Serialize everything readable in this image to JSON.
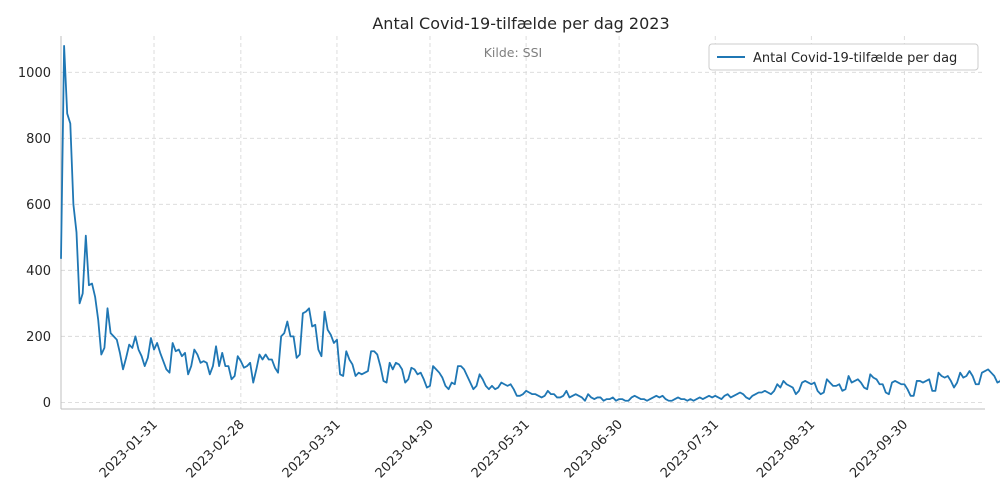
{
  "chart_data": {
    "type": "line",
    "title": "Antal Covid-19-tilfælde per dag 2023",
    "subtitle": "Kilde: SSI",
    "xlabel": "",
    "ylabel": "",
    "x_range": [
      "2023-01-01",
      "2023-10-26"
    ],
    "ylim": [
      -20,
      1110
    ],
    "x_ticks": [
      "2023-01-31",
      "2023-02-28",
      "2023-03-31",
      "2023-04-30",
      "2023-05-31",
      "2023-06-30",
      "2023-07-31",
      "2023-08-31",
      "2023-09-30"
    ],
    "y_ticks": [
      0,
      200,
      400,
      600,
      800,
      1000
    ],
    "grid": true,
    "legend_position": "top-right",
    "series": [
      {
        "name": "Antal Covid-19-tilfælde per dag",
        "color": "#1f77b4",
        "start_date": "2023-01-01",
        "values": [
          435,
          1080,
          875,
          845,
          600,
          515,
          300,
          330,
          505,
          355,
          360,
          320,
          250,
          145,
          165,
          285,
          210,
          200,
          190,
          150,
          100,
          135,
          175,
          165,
          200,
          160,
          140,
          110,
          135,
          195,
          160,
          180,
          150,
          125,
          100,
          90,
          180,
          155,
          160,
          140,
          150,
          85,
          110,
          160,
          145,
          120,
          125,
          120,
          85,
          110,
          170,
          110,
          150,
          110,
          110,
          70,
          80,
          140,
          125,
          105,
          110,
          120,
          60,
          100,
          145,
          130,
          145,
          130,
          130,
          105,
          90,
          200,
          210,
          245,
          200,
          200,
          135,
          145,
          270,
          275,
          285,
          230,
          235,
          160,
          140,
          275,
          220,
          205,
          180,
          190,
          85,
          80,
          155,
          130,
          115,
          80,
          90,
          85,
          90,
          95,
          155,
          155,
          145,
          110,
          65,
          60,
          120,
          100,
          120,
          115,
          100,
          60,
          70,
          105,
          100,
          85,
          90,
          70,
          45,
          50,
          110,
          100,
          90,
          75,
          50,
          40,
          60,
          55,
          110,
          110,
          100,
          80,
          60,
          40,
          50,
          85,
          70,
          50,
          40,
          50,
          40,
          45,
          60,
          55,
          50,
          55,
          40,
          20,
          20,
          25,
          35,
          30,
          25,
          25,
          20,
          15,
          20,
          35,
          25,
          25,
          15,
          15,
          20,
          35,
          15,
          20,
          25,
          20,
          15,
          5,
          25,
          15,
          10,
          15,
          15,
          5,
          10,
          10,
          15,
          5,
          10,
          10,
          5,
          5,
          15,
          20,
          15,
          10,
          10,
          5,
          10,
          15,
          20,
          15,
          20,
          10,
          5,
          5,
          10,
          15,
          10,
          10,
          5,
          10,
          5,
          10,
          15,
          10,
          15,
          20,
          15,
          20,
          15,
          10,
          20,
          25,
          15,
          20,
          25,
          30,
          25,
          15,
          10,
          20,
          25,
          30,
          30,
          35,
          30,
          25,
          35,
          55,
          45,
          65,
          55,
          50,
          45,
          25,
          35,
          60,
          65,
          60,
          55,
          60,
          35,
          25,
          30,
          70,
          60,
          50,
          50,
          55,
          35,
          40,
          80,
          60,
          65,
          70,
          60,
          45,
          40,
          85,
          75,
          70,
          55,
          55,
          30,
          25,
          60,
          65,
          60,
          55,
          55,
          40,
          20,
          20,
          65,
          65,
          60,
          65,
          70,
          35,
          35,
          90,
          80,
          75,
          80,
          65,
          45,
          60,
          90,
          75,
          80,
          95,
          80,
          55,
          55,
          90,
          95,
          100,
          90,
          80,
          60,
          65,
          105,
          0
        ]
      }
    ]
  }
}
